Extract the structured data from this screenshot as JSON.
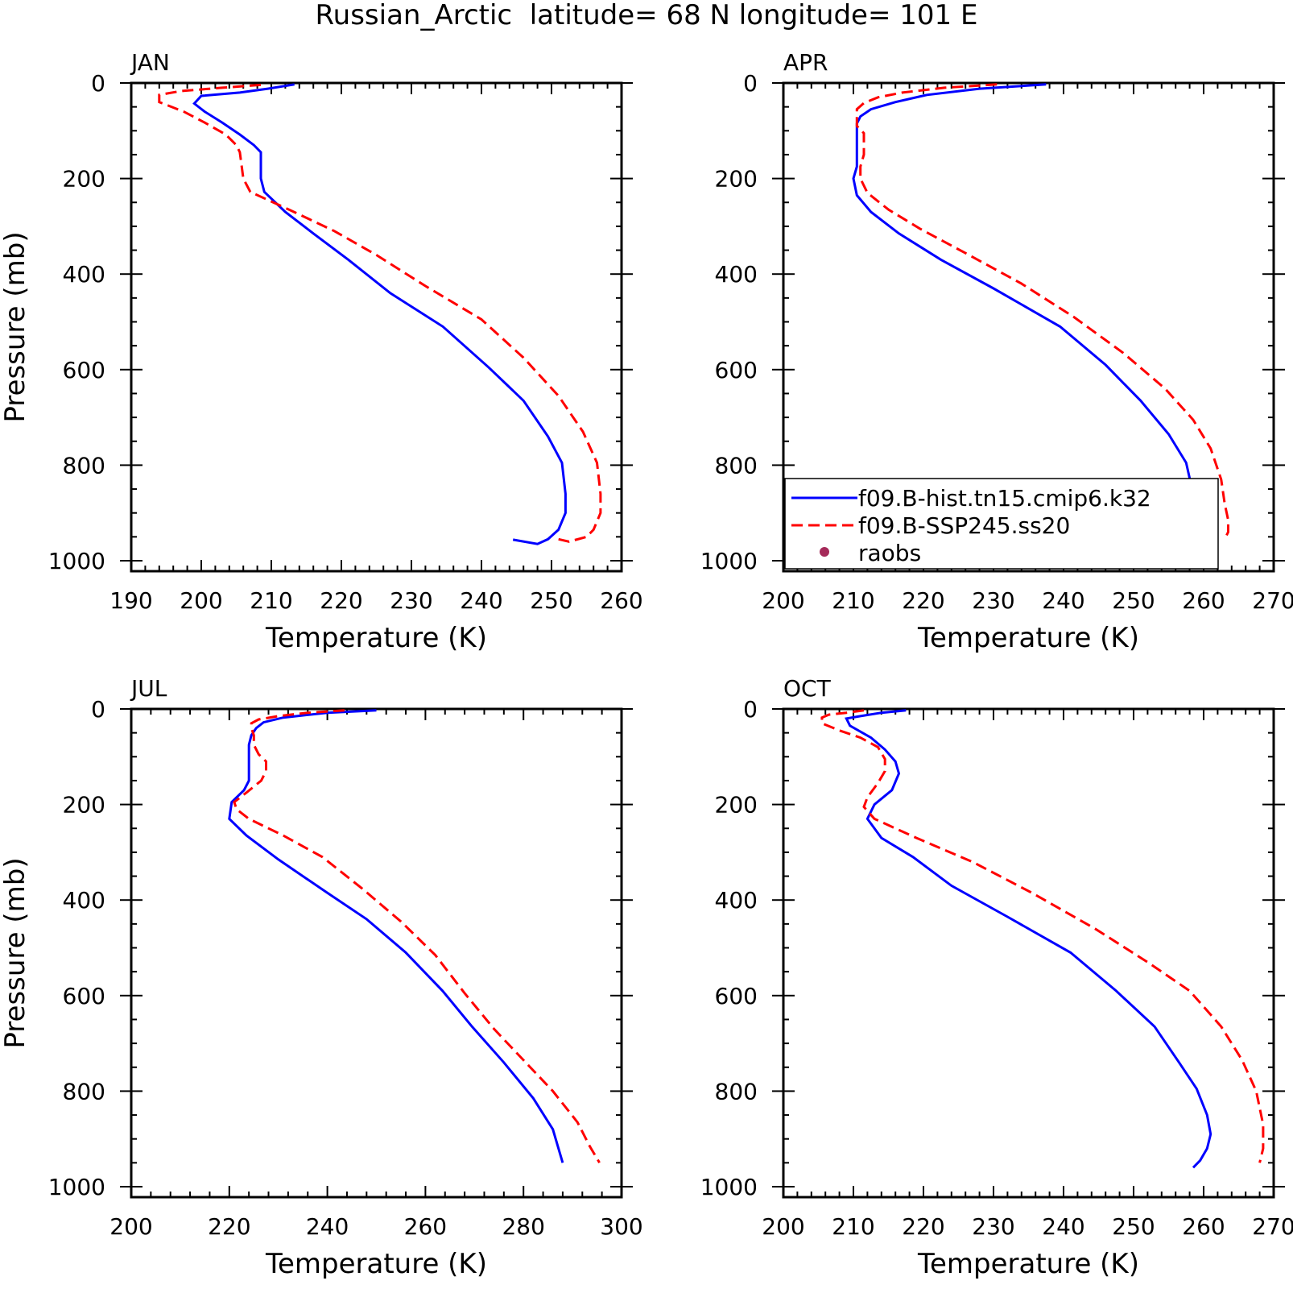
{
  "title": "Russian_Arctic  latitude= 68 N longitude= 101 E",
  "colors": {
    "hist": "#0000ff",
    "ssp": "#ff0000",
    "raobs": "#a52a5a"
  },
  "legend": {
    "items": [
      {
        "label": "f09.B-hist.tn15.cmip6.k32",
        "style": "solid",
        "color": "#0000ff"
      },
      {
        "label": "f09.B-SSP245.ss20",
        "style": "dashed",
        "color": "#ff0000"
      },
      {
        "label": "raobs",
        "style": "dot",
        "color": "#a52a5a"
      }
    ],
    "placement": "bottom-left of APR panel"
  },
  "chart_data": [
    {
      "type": "line",
      "panel": "JAN",
      "title": "JAN",
      "xlabel": "Temperature (K)",
      "ylabel": "Pressure (mb)",
      "xlim": [
        190,
        260
      ],
      "ylim": [
        1000,
        0
      ],
      "xticks": [
        190,
        200,
        210,
        220,
        230,
        240,
        250,
        260
      ],
      "yticks": [
        0,
        200,
        400,
        600,
        800,
        1000
      ],
      "series": [
        {
          "name": "f09.B-hist.tn15.cmip6.k32",
          "style": "solid",
          "points": [
            [
              213.3,
              3
            ],
            [
              209.5,
              12
            ],
            [
              205.5,
              20
            ],
            [
              200,
              27
            ],
            [
              199,
              43
            ],
            [
              200.5,
              60
            ],
            [
              203,
              83
            ],
            [
              205.5,
              108
            ],
            [
              207.5,
              130
            ],
            [
              208.5,
              145
            ],
            [
              208.5,
              200
            ],
            [
              209,
              228
            ],
            [
              212,
              270
            ],
            [
              216,
              315
            ],
            [
              221,
              370
            ],
            [
              227,
              440
            ],
            [
              234.5,
              510
            ],
            [
              241,
              595
            ],
            [
              246,
              665
            ],
            [
              249.5,
              740
            ],
            [
              251.5,
              795
            ],
            [
              252,
              860
            ],
            [
              252,
              900
            ],
            [
              251,
              935
            ],
            [
              249.5,
              955
            ],
            [
              248,
              965
            ],
            [
              244.5,
              956
            ]
          ]
        },
        {
          "name": "f09.B-SSP245.ss20",
          "style": "dashed",
          "points": [
            [
              208.5,
              4
            ],
            [
              203,
              10
            ],
            [
              197,
              17
            ],
            [
              194,
              25
            ],
            [
              194,
              40
            ],
            [
              197.5,
              60
            ],
            [
              200.5,
              83
            ],
            [
              203.5,
              108
            ],
            [
              205,
              130
            ],
            [
              205.5,
              145
            ],
            [
              206,
              200
            ],
            [
              207,
              228
            ],
            [
              212.5,
              265
            ],
            [
              219,
              310
            ],
            [
              225,
              360
            ],
            [
              232,
              425
            ],
            [
              240,
              495
            ],
            [
              246,
              575
            ],
            [
              251,
              655
            ],
            [
              254.5,
              730
            ],
            [
              256.5,
              795
            ],
            [
              257,
              860
            ],
            [
              257,
              900
            ],
            [
              256,
              935
            ],
            [
              255,
              950
            ],
            [
              252.5,
              960
            ],
            [
              251,
              955
            ]
          ]
        }
      ]
    },
    {
      "type": "line",
      "panel": "APR",
      "title": "APR",
      "xlabel": "Temperature (K)",
      "ylabel": "",
      "xlim": [
        200,
        270
      ],
      "ylim": [
        1000,
        0
      ],
      "xticks": [
        200,
        210,
        220,
        230,
        240,
        250,
        260,
        270
      ],
      "yticks": [
        0,
        200,
        400,
        600,
        800,
        1000
      ],
      "series": [
        {
          "name": "f09.B-hist.tn15.cmip6.k32",
          "style": "solid",
          "points": [
            [
              237.5,
              3
            ],
            [
              228,
              12
            ],
            [
              220.5,
              25
            ],
            [
              216,
              40
            ],
            [
              212.5,
              55
            ],
            [
              211,
              70
            ],
            [
              210.5,
              85
            ],
            [
              210.5,
              110
            ],
            [
              210.5,
              150
            ],
            [
              210.5,
              175
            ],
            [
              210,
              200
            ],
            [
              210.5,
              235
            ],
            [
              212.5,
              270
            ],
            [
              216.5,
              315
            ],
            [
              222.5,
              370
            ],
            [
              230,
              430
            ],
            [
              239.5,
              510
            ],
            [
              246,
              590
            ],
            [
              251,
              665
            ],
            [
              255,
              735
            ],
            [
              257.5,
              795
            ],
            [
              258.5,
              860
            ],
            [
              259,
              900
            ],
            [
              259,
              920
            ],
            [
              258.5,
              940
            ],
            [
              258,
              955
            ]
          ]
        },
        {
          "name": "f09.B-SSP245.ss20",
          "style": "dashed",
          "points": [
            [
              230.5,
              3
            ],
            [
              223,
              10
            ],
            [
              217,
              20
            ],
            [
              213.5,
              30
            ],
            [
              211.5,
              42
            ],
            [
              210.5,
              55
            ],
            [
              210.5,
              75
            ],
            [
              210.5,
              90
            ],
            [
              211.5,
              105
            ],
            [
              211.5,
              150
            ],
            [
              211,
              175
            ],
            [
              211,
              200
            ],
            [
              212,
              230
            ],
            [
              215,
              265
            ],
            [
              219.5,
              305
            ],
            [
              226.5,
              360
            ],
            [
              234,
              420
            ],
            [
              241.5,
              490
            ],
            [
              248.5,
              565
            ],
            [
              254.5,
              640
            ],
            [
              258.5,
              705
            ],
            [
              261,
              765
            ],
            [
              262.5,
              830
            ],
            [
              263,
              880
            ],
            [
              263.5,
              915
            ],
            [
              263.5,
              940
            ],
            [
              263,
              955
            ]
          ]
        }
      ]
    },
    {
      "type": "line",
      "panel": "JUL",
      "title": "JUL",
      "xlabel": "Temperature (K)",
      "ylabel": "Pressure (mb)",
      "xlim": [
        200,
        300
      ],
      "ylim": [
        1000,
        0
      ],
      "xticks": [
        200,
        220,
        240,
        260,
        280,
        300
      ],
      "yticks": [
        0,
        200,
        400,
        600,
        800,
        1000
      ],
      "series": [
        {
          "name": "f09.B-hist.tn15.cmip6.k32",
          "style": "solid",
          "points": [
            [
              250,
              3
            ],
            [
              240,
              8
            ],
            [
              231,
              18
            ],
            [
              227,
              28
            ],
            [
              225.5,
              40
            ],
            [
              224.5,
              55
            ],
            [
              224,
              75
            ],
            [
              224,
              100
            ],
            [
              224,
              150
            ],
            [
              223,
              170
            ],
            [
              220.5,
              195
            ],
            [
              220,
              230
            ],
            [
              223.5,
              265
            ],
            [
              230,
              315
            ],
            [
              240,
              385
            ],
            [
              248,
              440
            ],
            [
              256,
              510
            ],
            [
              263.5,
              590
            ],
            [
              269.5,
              665
            ],
            [
              276,
              740
            ],
            [
              282,
              815
            ],
            [
              286,
              880
            ],
            [
              287,
              915
            ],
            [
              288,
              950
            ]
          ]
        },
        {
          "name": "f09.B-SSP245.ss20",
          "style": "dashed",
          "points": [
            [
              243.5,
              3
            ],
            [
              236,
              8
            ],
            [
              230,
              15
            ],
            [
              226,
              22
            ],
            [
              224.5,
              30
            ],
            [
              224.5,
              40
            ],
            [
              225,
              55
            ],
            [
              225,
              75
            ],
            [
              226,
              95
            ],
            [
              227.5,
              110
            ],
            [
              227.5,
              130
            ],
            [
              226.5,
              150
            ],
            [
              223.5,
              175
            ],
            [
              221,
              195
            ],
            [
              221.5,
              210
            ],
            [
              224,
              230
            ],
            [
              231,
              265
            ],
            [
              239,
              310
            ],
            [
              247,
              375
            ],
            [
              255,
              445
            ],
            [
              262,
              515
            ],
            [
              268,
              595
            ],
            [
              274,
              670
            ],
            [
              280,
              735
            ],
            [
              286,
              800
            ],
            [
              291,
              865
            ],
            [
              293.5,
              915
            ],
            [
              295.5,
              950
            ]
          ]
        }
      ]
    },
    {
      "type": "line",
      "panel": "OCT",
      "title": "OCT",
      "xlabel": "Temperature (K)",
      "ylabel": "",
      "xlim": [
        200,
        270
      ],
      "ylim": [
        1000,
        0
      ],
      "xticks": [
        200,
        210,
        220,
        230,
        240,
        250,
        260,
        270
      ],
      "yticks": [
        0,
        200,
        400,
        600,
        800,
        1000
      ],
      "series": [
        {
          "name": "f09.B-hist.tn15.cmip6.k32",
          "style": "solid",
          "points": [
            [
              217.5,
              3
            ],
            [
              214,
              8
            ],
            [
              211,
              15
            ],
            [
              209,
              20
            ],
            [
              209.5,
              35
            ],
            [
              212.5,
              60
            ],
            [
              214.5,
              85
            ],
            [
              216,
              110
            ],
            [
              216.5,
              135
            ],
            [
              215.5,
              170
            ],
            [
              213,
              200
            ],
            [
              212,
              230
            ],
            [
              214,
              270
            ],
            [
              218.5,
              310
            ],
            [
              224,
              370
            ],
            [
              232,
              435
            ],
            [
              241,
              510
            ],
            [
              247.5,
              590
            ],
            [
              253,
              665
            ],
            [
              256.5,
              740
            ],
            [
              259,
              795
            ],
            [
              260.5,
              850
            ],
            [
              261,
              890
            ],
            [
              260.5,
              920
            ],
            [
              259.5,
              945
            ],
            [
              258.5,
              960
            ]
          ]
        },
        {
          "name": "f09.B-SSP245.ss20",
          "style": "dashed",
          "points": [
            [
              211.5,
              3
            ],
            [
              209,
              8
            ],
            [
              206.5,
              12
            ],
            [
              205.5,
              18
            ],
            [
              205.5,
              30
            ],
            [
              208,
              45
            ],
            [
              211,
              60
            ],
            [
              213.5,
              80
            ],
            [
              214.5,
              105
            ],
            [
              214.5,
              130
            ],
            [
              213.5,
              155
            ],
            [
              212,
              185
            ],
            [
              211.5,
              205
            ],
            [
              213,
              230
            ],
            [
              219,
              270
            ],
            [
              227,
              320
            ],
            [
              235.5,
              385
            ],
            [
              244.5,
              460
            ],
            [
              252,
              530
            ],
            [
              258,
              590
            ],
            [
              262.5,
              665
            ],
            [
              265.5,
              735
            ],
            [
              267.5,
              800
            ],
            [
              268.5,
              870
            ],
            [
              268.5,
              920
            ],
            [
              268,
              950
            ]
          ]
        }
      ]
    }
  ]
}
